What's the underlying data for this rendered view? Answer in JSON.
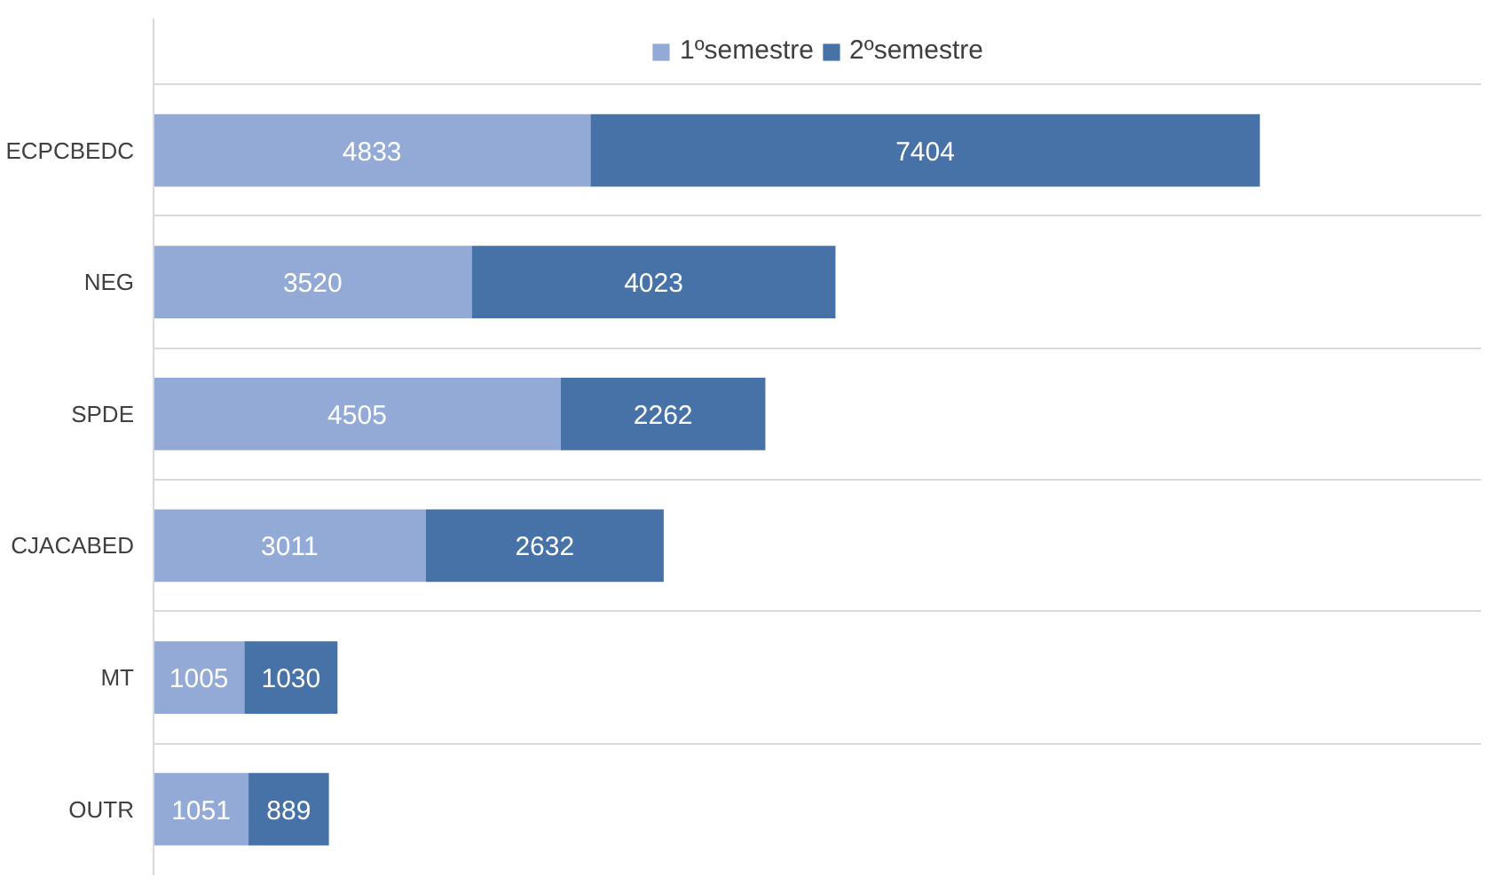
{
  "chart_data": {
    "type": "bar",
    "orientation": "horizontal",
    "stacked": true,
    "data_labels": true,
    "legend": "top",
    "grid": "y",
    "categories": [
      "ECPCBEDC",
      "NEG",
      "SPDE",
      "CJACABED",
      "MT",
      "OUTR"
    ],
    "series": [
      {
        "name": "1ºsemestre",
        "color": "#94aad6",
        "values": [
          4833,
          3520,
          4505,
          3011,
          1005,
          1051
        ]
      },
      {
        "name": "2ºsemestre",
        "color": "#4672a8",
        "values": [
          7404,
          4023,
          2262,
          2632,
          1030,
          889
        ]
      }
    ]
  }
}
